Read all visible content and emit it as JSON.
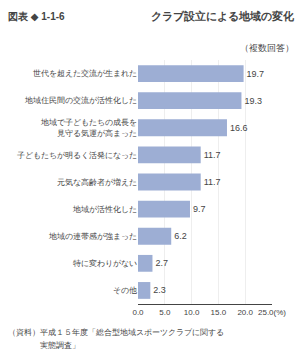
{
  "chart_data": {
    "type": "bar",
    "orientation": "horizontal",
    "title": "クラブ設立による地域の変化",
    "subtitle": "（複数回答）",
    "annotations": [
      "図表 ◆ 1-1-6",
      "（資料）平成１５年度「総合型地域スポーツクラブに関する",
      "　　　　実態調査」"
    ],
    "categories": [
      "世代を超えた交流が生まれた",
      "地域住民間の交流が活性化した",
      "地域で子どもたちの成長を\n見守る気運が高まった",
      "子どもたちが明るく活発になった",
      "元気な高齢者が増えた",
      "地域が活性化した",
      "地域の連帯感が強まった",
      "特に変わりがない",
      "その他"
    ],
    "values": [
      19.7,
      19.3,
      16.6,
      11.7,
      11.7,
      9.7,
      6.2,
      2.7,
      2.3
    ],
    "color": "#9daed4",
    "xlim": [
      0,
      25.0
    ],
    "xticks": [
      {
        "value": 0.0,
        "label": "0.0"
      },
      {
        "value": 5.0,
        "label": "5.0"
      },
      {
        "value": 10.0,
        "label": "10.0"
      },
      {
        "value": 15.0,
        "label": "15.0"
      },
      {
        "value": 20.0,
        "label": "20.0"
      },
      {
        "value": 25.0,
        "label": "25.0(%)"
      }
    ],
    "grid": true,
    "data_labels": true
  }
}
